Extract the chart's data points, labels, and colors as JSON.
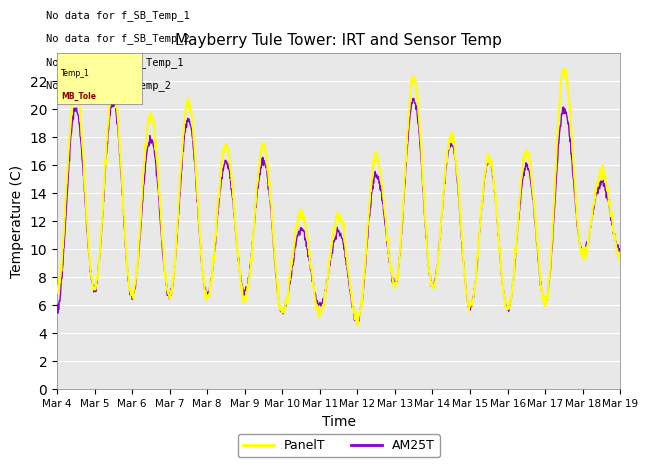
{
  "title": "Mayberry Tule Tower: IRT and Sensor Temp",
  "xlabel": "Time",
  "ylabel": "Temperature (C)",
  "ylim": [
    0,
    24
  ],
  "yticks": [
    0,
    2,
    4,
    6,
    8,
    10,
    12,
    14,
    16,
    18,
    20,
    22
  ],
  "xtick_labels": [
    "Mar 4",
    "Mar 5",
    "Mar 6",
    "Mar 7",
    "Mar 8",
    "Mar 9",
    "Mar 10",
    "Mar 11",
    "Mar 12",
    "Mar 13",
    "Mar 14",
    "Mar 15",
    "Mar 16",
    "Mar 17",
    "Mar 18",
    "Mar 19"
  ],
  "panel_color": "#ffff00",
  "am25_color": "#8800cc",
  "bg_color": "#e8e8e8",
  "no_data_texts": [
    "No data for f_SB_Temp_1",
    "No data for f_SB_Temp_2",
    "No data for f_T_Temp_1",
    "No data for f_Temp_2"
  ],
  "legend_entries": [
    "PanelT",
    "AM25T"
  ],
  "num_days": 15,
  "points_per_day": 96,
  "day_peaks_panel": [
    21.5,
    7.0,
    21.4,
    7.2,
    19.6,
    6.7,
    20.5,
    6.7,
    17.3,
    6.6,
    17.3,
    6.5,
    12.6,
    5.5,
    12.4,
    5.5,
    16.5,
    5.0,
    22.1,
    7.5,
    18.1,
    7.3,
    16.5,
    5.9,
    16.9,
    5.8,
    22.8,
    6.2,
    15.5,
    9.5
  ],
  "day_peaks_am25": [
    20.0,
    5.7,
    20.5,
    7.2,
    17.9,
    6.6,
    19.2,
    6.7,
    16.2,
    6.7,
    16.3,
    7.0,
    11.4,
    5.5,
    11.3,
    6.0,
    15.3,
    4.9,
    20.7,
    7.6,
    17.5,
    7.5,
    16.3,
    5.9,
    16.0,
    5.8,
    20.0,
    6.3,
    14.8,
    9.8
  ]
}
